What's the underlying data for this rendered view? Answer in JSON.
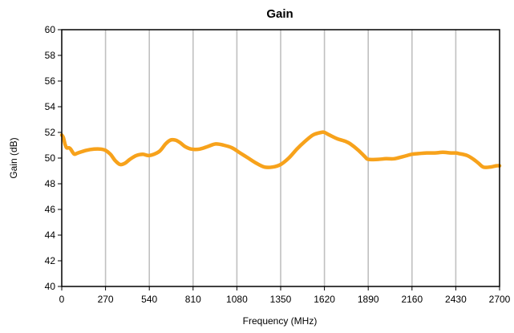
{
  "chart_data": {
    "type": "line",
    "title": "Gain",
    "xlabel": "Frequency (MHz)",
    "ylabel": "Gain (dB)",
    "xlim": [
      0,
      2700
    ],
    "ylim": [
      40,
      60
    ],
    "xticks": [
      0,
      270,
      540,
      810,
      1080,
      1350,
      1620,
      1890,
      2160,
      2430,
      2700
    ],
    "yticks": [
      40,
      42,
      44,
      46,
      48,
      50,
      52,
      54,
      56,
      58,
      60
    ],
    "grid": "vertical",
    "legend": "none",
    "colors": {
      "series": "#f7a21b",
      "grid": "#c0c0c0",
      "axis": "#000000"
    },
    "series": [
      {
        "x": [
          0,
          10,
          20,
          30,
          45,
          55,
          70,
          80,
          100,
          150,
          200,
          240,
          270,
          300,
          330,
          360,
          390,
          420,
          460,
          500,
          540,
          600,
          640,
          670,
          700,
          730,
          760,
          800,
          850,
          900,
          950,
          1000,
          1050,
          1100,
          1150,
          1200,
          1250,
          1300,
          1350,
          1400,
          1450,
          1500,
          1550,
          1600,
          1620,
          1650,
          1700,
          1750,
          1780,
          1830,
          1870,
          1890,
          1950,
          2000,
          2050,
          2100,
          2160,
          2200,
          2250,
          2300,
          2350,
          2400,
          2430,
          2450,
          2500,
          2540,
          2570,
          2600,
          2640,
          2680,
          2700
        ],
        "y": [
          51.8,
          51.6,
          51.1,
          50.8,
          50.8,
          50.7,
          50.4,
          50.3,
          50.4,
          50.6,
          50.7,
          50.7,
          50.6,
          50.3,
          49.8,
          49.5,
          49.6,
          49.9,
          50.2,
          50.3,
          50.2,
          50.5,
          51.1,
          51.4,
          51.4,
          51.2,
          50.9,
          50.7,
          50.7,
          50.9,
          51.1,
          51.0,
          50.8,
          50.4,
          50.0,
          49.6,
          49.3,
          49.3,
          49.5,
          50.0,
          50.7,
          51.3,
          51.8,
          52.0,
          52.0,
          51.8,
          51.5,
          51.3,
          51.1,
          50.6,
          50.1,
          49.9,
          49.9,
          49.95,
          49.95,
          50.1,
          50.3,
          50.35,
          50.4,
          50.4,
          50.45,
          50.4,
          50.4,
          50.35,
          50.2,
          49.9,
          49.6,
          49.3,
          49.3,
          49.4,
          49.4
        ]
      }
    ]
  }
}
